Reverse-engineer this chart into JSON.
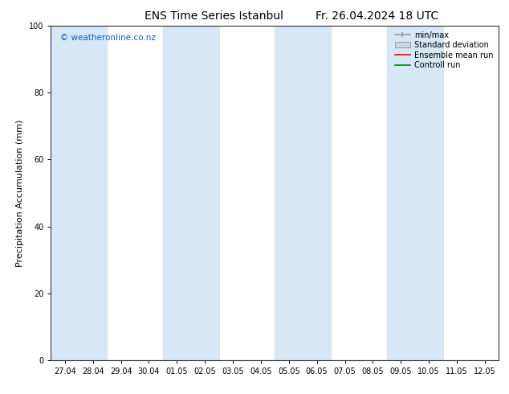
{
  "title_left": "ENS Time Series Istanbul",
  "title_right": "Fr. 26.04.2024 18 UTC",
  "ylabel": "Precipitation Accumulation (mm)",
  "ylim": [
    0,
    100
  ],
  "yticks": [
    0,
    20,
    40,
    60,
    80,
    100
  ],
  "x_labels": [
    "27.04",
    "28.04",
    "29.04",
    "30.04",
    "01.05",
    "02.05",
    "03.05",
    "04.05",
    "05.05",
    "06.05",
    "07.05",
    "08.05",
    "09.05",
    "10.05",
    "11.05",
    "12.05"
  ],
  "band_color": "#d6e8f5",
  "bg_color": "#ffffff",
  "watermark": "© weatheronline.co.nz",
  "watermark_color": "#1a56c8",
  "legend_items": [
    {
      "label": "min/max",
      "color": "#aaaaaa",
      "type": "errorbar"
    },
    {
      "label": "Standard deviation",
      "color": "#c8daea",
      "type": "fill"
    },
    {
      "label": "Ensemble mean run",
      "color": "#ff0000",
      "type": "line"
    },
    {
      "label": "Controll run",
      "color": "#008000",
      "type": "line"
    }
  ],
  "shaded_bands": [
    0,
    1,
    4,
    5,
    8,
    9,
    12,
    13
  ],
  "title_fontsize": 10,
  "axis_fontsize": 8,
  "tick_fontsize": 7,
  "watermark_fontsize": 7.5,
  "legend_fontsize": 7
}
